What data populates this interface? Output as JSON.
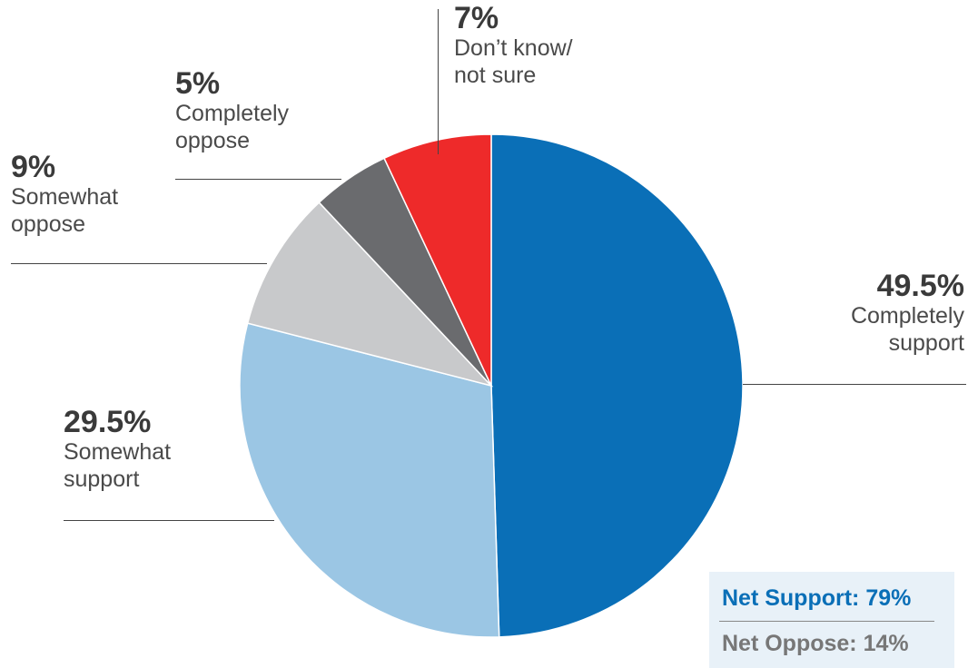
{
  "chart_data": {
    "type": "pie",
    "slices": [
      {
        "label": "Completely\nsupport",
        "pct_label": "49.5%",
        "value": 49.5,
        "color": "#0a6fb7"
      },
      {
        "label": "Somewhat\nsupport",
        "pct_label": "29.5%",
        "value": 29.5,
        "color": "#9bc6e4"
      },
      {
        "label": "Somewhat\noppose",
        "pct_label": "9%",
        "value": 9,
        "color": "#c8c9cb"
      },
      {
        "label": "Completely\noppose",
        "pct_label": "5%",
        "value": 5,
        "color": "#6a6b6e"
      },
      {
        "label": "Don’t know/\nnot sure",
        "pct_label": "7%",
        "value": 7,
        "color": "#ee2a2a"
      }
    ],
    "summary": {
      "net_support": "Net Support: 79%",
      "net_oppose": "Net Oppose: 14%",
      "support_color": "#0a6fb7",
      "oppose_color": "#777777"
    }
  }
}
